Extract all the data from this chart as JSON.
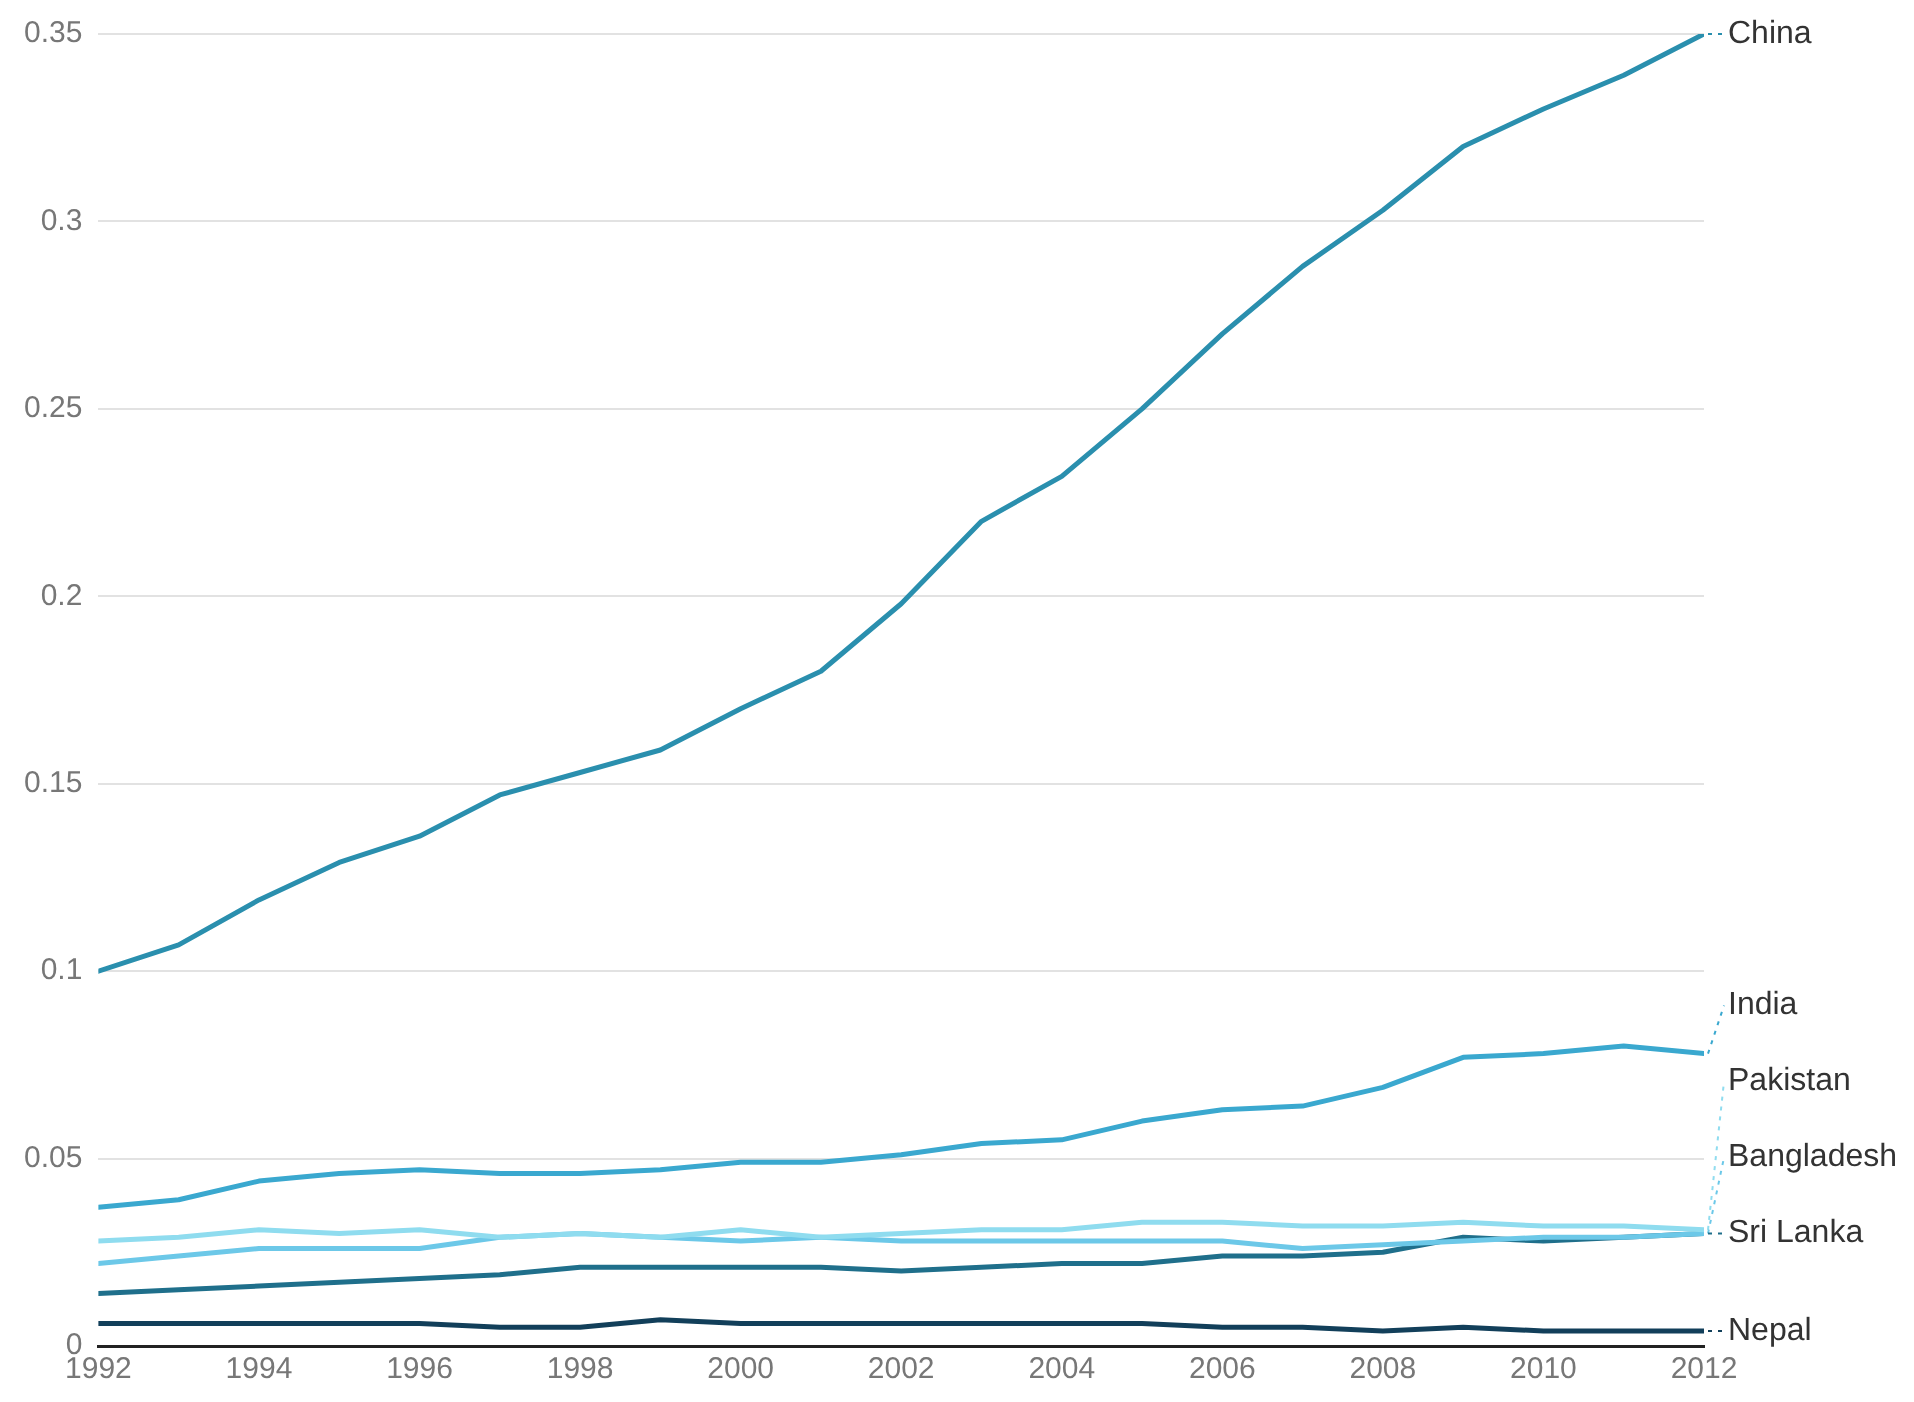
{
  "chart_data": {
    "type": "line",
    "x": [
      1992,
      1993,
      1994,
      1995,
      1996,
      1997,
      1998,
      1999,
      2000,
      2001,
      2002,
      2003,
      2004,
      2005,
      2006,
      2007,
      2008,
      2009,
      2010,
      2011,
      2012
    ],
    "series": [
      {
        "name": "China",
        "color": "#2a8fae",
        "values": [
          0.1,
          0.107,
          0.119,
          0.129,
          0.136,
          0.147,
          0.153,
          0.159,
          0.17,
          0.18,
          0.198,
          0.22,
          0.232,
          0.25,
          0.27,
          0.288,
          0.303,
          0.32,
          0.33,
          0.339,
          0.35
        ]
      },
      {
        "name": "India",
        "color": "#3aa8cf",
        "values": [
          0.037,
          0.039,
          0.044,
          0.046,
          0.047,
          0.046,
          0.046,
          0.047,
          0.049,
          0.049,
          0.051,
          0.054,
          0.055,
          0.06,
          0.063,
          0.064,
          0.069,
          0.077,
          0.078,
          0.08,
          0.078
        ]
      },
      {
        "name": "Pakistan",
        "color": "#8fdcef",
        "values": [
          0.028,
          0.029,
          0.031,
          0.03,
          0.031,
          0.029,
          0.03,
          0.029,
          0.031,
          0.029,
          0.03,
          0.031,
          0.031,
          0.033,
          0.033,
          0.032,
          0.032,
          0.033,
          0.032,
          0.032,
          0.031
        ]
      },
      {
        "name": "Bangladesh",
        "color": "#6cc8e8",
        "values": [
          0.022,
          0.024,
          0.026,
          0.026,
          0.026,
          0.029,
          0.03,
          0.029,
          0.028,
          0.029,
          0.028,
          0.028,
          0.028,
          0.028,
          0.028,
          0.026,
          0.027,
          0.028,
          0.029,
          0.029,
          0.03
        ]
      },
      {
        "name": "Sri Lanka",
        "color": "#1f6f8b",
        "values": [
          0.014,
          0.015,
          0.016,
          0.017,
          0.018,
          0.019,
          0.021,
          0.021,
          0.021,
          0.021,
          0.02,
          0.021,
          0.022,
          0.022,
          0.024,
          0.024,
          0.025,
          0.029,
          0.028,
          0.029,
          0.03
        ]
      },
      {
        "name": "Nepal",
        "color": "#123f5a",
        "values": [
          0.006,
          0.006,
          0.006,
          0.006,
          0.006,
          0.005,
          0.005,
          0.007,
          0.006,
          0.006,
          0.006,
          0.006,
          0.006,
          0.006,
          0.005,
          0.005,
          0.004,
          0.005,
          0.004,
          0.004,
          0.004
        ]
      }
    ],
    "xlim": [
      1992,
      2012
    ],
    "xticks": [
      1992,
      1994,
      1996,
      1998,
      2000,
      2002,
      2004,
      2006,
      2008,
      2010,
      2012
    ],
    "ylim": [
      0,
      0.35
    ],
    "yticks": [
      0,
      0.05,
      0.1,
      0.15,
      0.2,
      0.25,
      0.3,
      0.35
    ],
    "grid": "y",
    "legend": "right",
    "marker": "none",
    "line_style": "solid"
  }
}
